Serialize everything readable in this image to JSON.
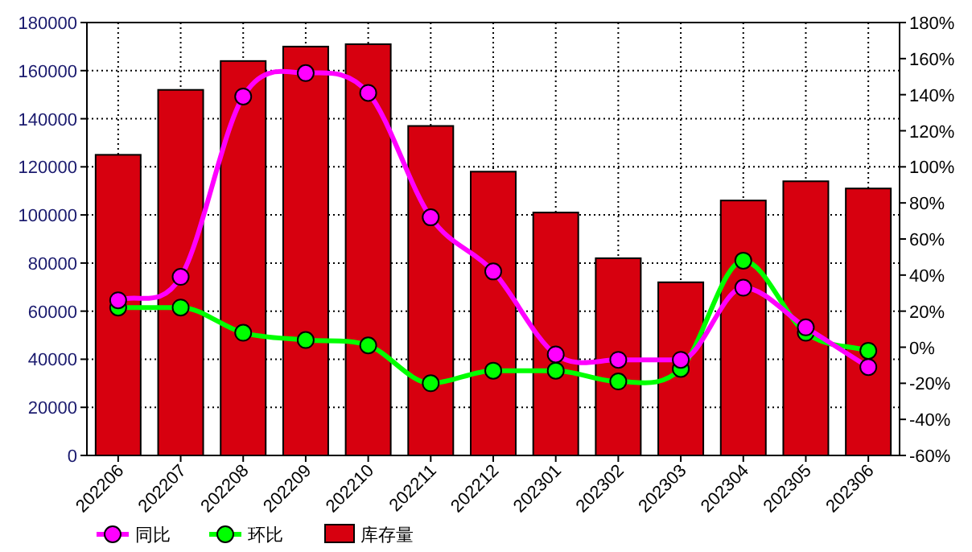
{
  "chart_data": {
    "type": "bar",
    "categories": [
      "202206",
      "202207",
      "202208",
      "202209",
      "202210",
      "202211",
      "202212",
      "202301",
      "202302",
      "202303",
      "202304",
      "202305",
      "202306"
    ],
    "series": [
      {
        "name": "同比",
        "type": "line",
        "axis": "y2",
        "color": "#ff00ff",
        "values": [
          26,
          39,
          139,
          152,
          141,
          72,
          42,
          -4,
          -7,
          -7,
          33,
          11,
          -11
        ]
      },
      {
        "name": "环比",
        "type": "line",
        "axis": "y2",
        "color": "#00ff00",
        "values": [
          22,
          22,
          8,
          4,
          1,
          -20,
          -13,
          -13,
          -19,
          -12,
          48,
          8,
          -2
        ]
      },
      {
        "name": "库存量",
        "color": "#d7000f",
        "values": [
          125000,
          152000,
          164000,
          170000,
          171000,
          137000,
          118000,
          101000,
          82000,
          72000,
          106000,
          114000,
          111000
        ]
      }
    ],
    "ylim": [
      0,
      180000
    ],
    "yticks": [
      0,
      20000,
      40000,
      60000,
      80000,
      100000,
      120000,
      140000,
      160000,
      180000
    ],
    "y2lim": [
      -60,
      180
    ],
    "y2ticks": [
      {
        "value": -60,
        "label": "-60%"
      },
      {
        "value": -40,
        "label": "-40%"
      },
      {
        "value": -20,
        "label": "-20%"
      },
      {
        "value": 0,
        "label": "0%"
      },
      {
        "value": 20,
        "label": "20%"
      },
      {
        "value": 40,
        "label": "40%"
      },
      {
        "value": 60,
        "label": "60%"
      },
      {
        "value": 80,
        "label": "80%"
      },
      {
        "value": 100,
        "label": "100%"
      },
      {
        "value": 120,
        "label": "120%"
      },
      {
        "value": 140,
        "label": "140%"
      },
      {
        "value": 160,
        "label": "160%"
      },
      {
        "value": 180,
        "label": "180%"
      }
    ],
    "grid": true,
    "legend": "bottom left",
    "marker": "circle"
  }
}
